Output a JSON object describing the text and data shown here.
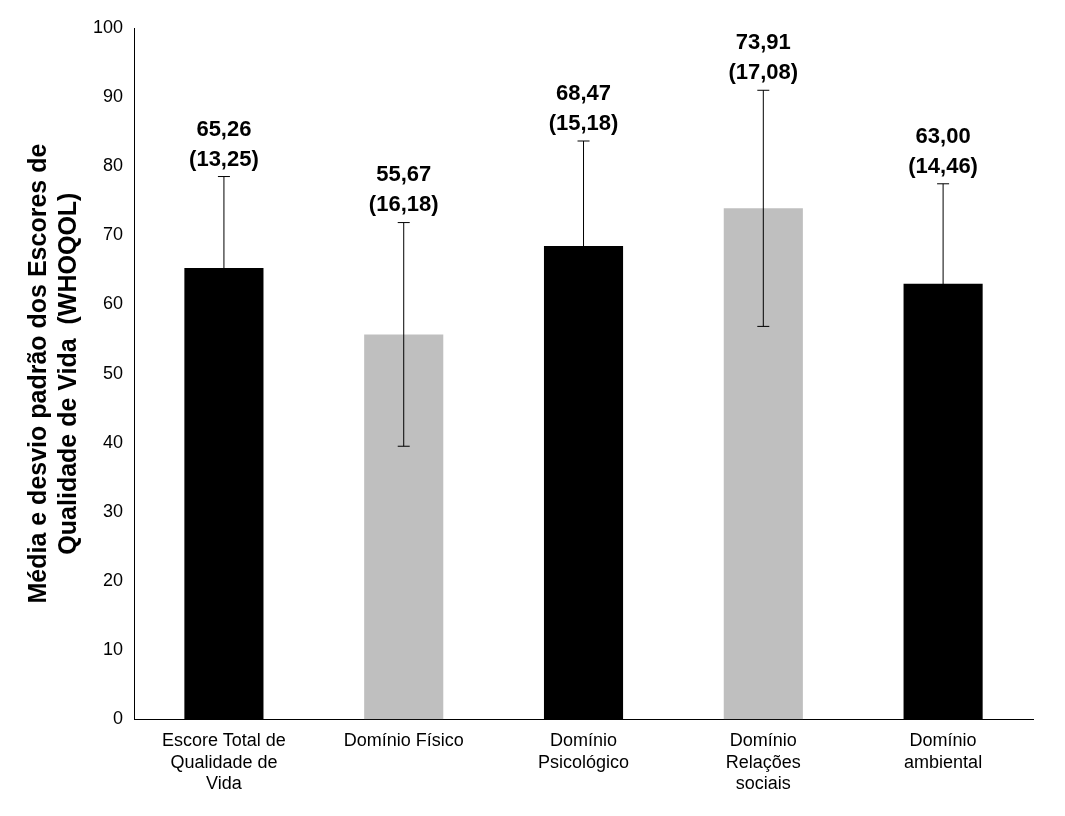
{
  "chart_data": {
    "type": "bar",
    "ylabel": "Média e desvio padrão dos Escores de Qualidade de Vida  (WHOQOL)",
    "categories": [
      "Escore Total de Qualidade de Vida",
      "Domínio Físico",
      "Domínio Psicológico",
      "Domínio Relações sociais",
      "Domínio ambiental"
    ],
    "values": [
      65.26,
      55.67,
      68.47,
      73.91,
      63.0
    ],
    "colors": [
      "#000000",
      "#bfbfbf",
      "#000000",
      "#bfbfbf",
      "#000000"
    ],
    "errors": [
      13.25,
      16.18,
      15.18,
      17.08,
      14.46
    ],
    "annotations": [
      {
        "text": "65,26 (13,25)",
        "x": "Escore Total de Qualidade de Vida",
        "y": 78.5
      },
      {
        "text": "55,67 (16,18)",
        "x": "Domínio Físico",
        "y": 71.9
      },
      {
        "text": "68,47 (15,18)",
        "x": "Domínio Psicológico",
        "y": 83.7
      },
      {
        "text": "73,91 (17,08)",
        "x": "Domínio Relações sociais",
        "y": 91
      },
      {
        "text": "63,00 (14,46)",
        "x": "Domínio ambiental",
        "y": 77.5
      }
    ],
    "ylim": [
      0,
      100
    ],
    "yticks": [
      0,
      10,
      20,
      30,
      40,
      50,
      60,
      70,
      80,
      90,
      100
    ],
    "grid": false,
    "legend": false
  }
}
